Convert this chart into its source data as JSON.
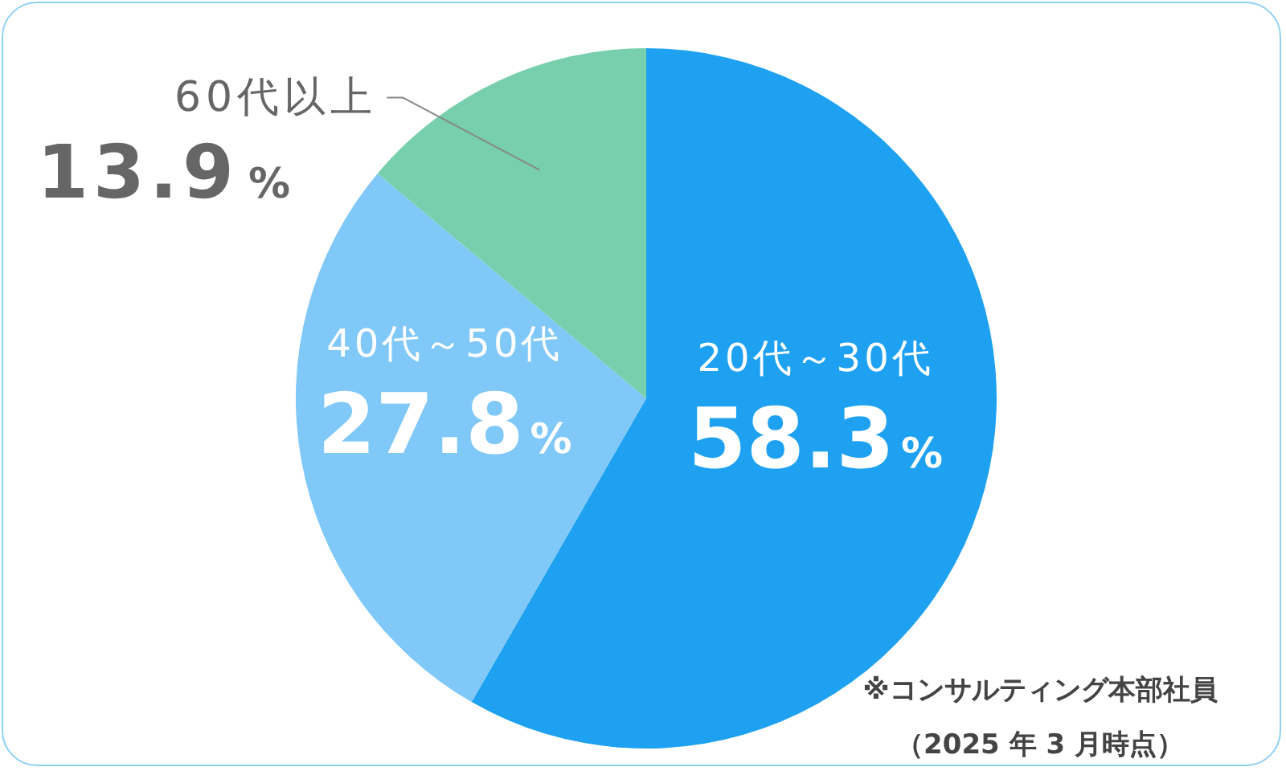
{
  "chart_data": {
    "type": "pie",
    "categories": [
      "20代～30代",
      "40代～50代",
      "60代以上"
    ],
    "values": [
      58.3,
      27.8,
      13.9
    ],
    "colors": [
      "#1ea1f1",
      "#7fc8f8",
      "#77cfad"
    ],
    "value_labels": [
      "58.3%",
      "27.8%",
      "13.9%"
    ],
    "annotations": [
      "※コンサルティング本部社員",
      "（2025 年 3 月時点）"
    ]
  }
}
